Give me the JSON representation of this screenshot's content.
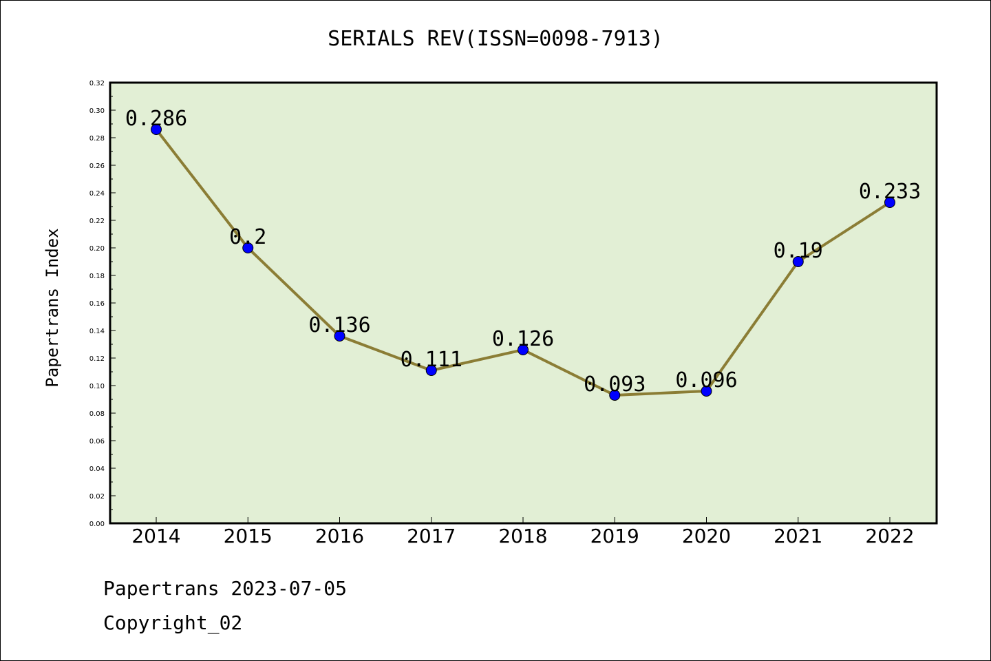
{
  "chart_data": {
    "type": "line",
    "title": "SERIALS REV(ISSN=0098-7913)",
    "xlabel": "",
    "ylabel": "Papertrans Index",
    "categories": [
      "2014",
      "2015",
      "2016",
      "2017",
      "2018",
      "2019",
      "2020",
      "2021",
      "2022"
    ],
    "values": [
      0.286,
      0.2,
      0.136,
      0.111,
      0.126,
      0.093,
      0.096,
      0.19,
      0.233
    ],
    "data_labels": [
      "0.286",
      "0.2",
      "0.136",
      "0.111",
      "0.126",
      "0.093",
      "0.096",
      "0.19",
      "0.233"
    ],
    "ylim": [
      0,
      0.32
    ],
    "yticks": [
      "0.00",
      "0.02",
      "0.04",
      "0.06",
      "0.08",
      "0.10",
      "0.12",
      "0.14",
      "0.16",
      "0.18",
      "0.20",
      "0.22",
      "0.24",
      "0.26",
      "0.28",
      "0.30",
      "0.32"
    ],
    "grid": false,
    "legend": "none",
    "colors": {
      "plot_background": "#e2efd5",
      "line": "#8b7d35",
      "marker": "#0000ff"
    }
  },
  "footer": {
    "line1": "Papertrans 2023-07-05",
    "line2": "Copyright_02"
  }
}
